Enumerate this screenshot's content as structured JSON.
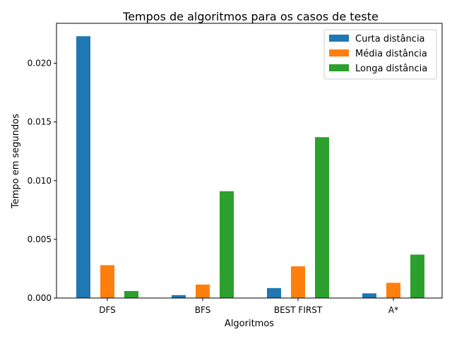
{
  "chart_data": {
    "type": "bar",
    "title": "Tempos de algoritmos para os casos de teste",
    "xlabel": "Algoritmos",
    "ylabel": "Tempo em segundos",
    "categories": [
      "DFS",
      "BFS",
      "BEST FIRST",
      "A*"
    ],
    "series": [
      {
        "name": "Curta distância",
        "color": "#1f77b4",
        "values": [
          0.0223,
          0.00025,
          0.00085,
          0.0004
        ]
      },
      {
        "name": "Média distância",
        "color": "#ff7f0e",
        "values": [
          0.0028,
          0.00115,
          0.0027,
          0.0013
        ]
      },
      {
        "name": "Longa distância",
        "color": "#2ca02c",
        "values": [
          0.0006,
          0.0091,
          0.0137,
          0.0037
        ]
      }
    ],
    "ylim": [
      0,
      0.0234
    ],
    "yticks": [
      "0.000",
      "0.005",
      "0.010",
      "0.015",
      "0.020"
    ],
    "legend": "top-right",
    "grid": false
  }
}
